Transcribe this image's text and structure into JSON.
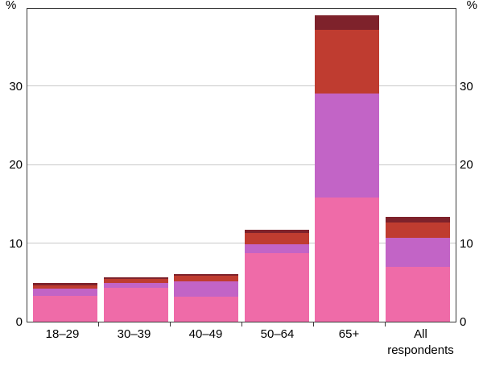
{
  "chart_data": {
    "type": "bar",
    "stacked": true,
    "title": "",
    "y_unit": "%",
    "ylim": [
      0,
      40
    ],
    "yticks": [
      0,
      10,
      20,
      30
    ],
    "grid": true,
    "legend": "none",
    "categories": [
      "18–29",
      "30–39",
      "40–49",
      "50–64",
      "65+",
      "All respondents"
    ],
    "series": [
      {
        "name": "pink",
        "color": "#ef6ba8",
        "values": [
          3.3,
          4.3,
          3.2,
          8.7,
          15.8,
          7.0
        ]
      },
      {
        "name": "purple",
        "color": "#c264c6",
        "values": [
          0.9,
          0.6,
          1.9,
          1.1,
          13.2,
          3.7
        ]
      },
      {
        "name": "red",
        "color": "#bf3c30",
        "values": [
          0.4,
          0.5,
          0.8,
          1.5,
          8.1,
          1.9
        ]
      },
      {
        "name": "dark-red",
        "color": "#7e222b",
        "values": [
          0.3,
          0.2,
          0.2,
          0.4,
          1.9,
          0.7
        ]
      }
    ],
    "totals": [
      4.9,
      5.6,
      6.1,
      11.7,
      39.0,
      13.3
    ]
  },
  "frame_color": "#3a3a3a",
  "gridline_color": "#c9c9c9"
}
